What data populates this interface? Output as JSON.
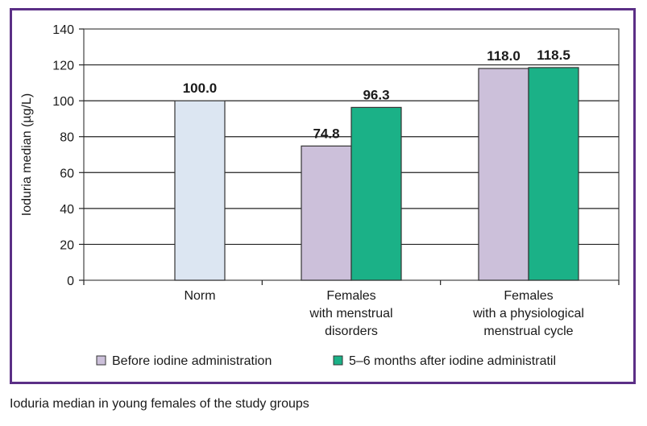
{
  "caption": "Ioduria median in young females of the study groups",
  "chart_data": {
    "type": "bar",
    "ylabel": "Ioduria median (µg/L)",
    "xlabel": "",
    "ylim": [
      0,
      140
    ],
    "yticks": [
      0,
      20,
      40,
      60,
      80,
      100,
      120,
      140
    ],
    "grid": true,
    "legend_position": "bottom",
    "categories": [
      [
        "Norm"
      ],
      [
        "Females",
        "with menstrual",
        "disorders"
      ],
      [
        "Females",
        "with a physiological",
        "menstrual cycle"
      ]
    ],
    "norm_bar": {
      "category": 0,
      "value": 100.0,
      "label": "100.0",
      "color": "#dce6f2"
    },
    "series": [
      {
        "name": "Before iodine administration",
        "color": "#ccc0da",
        "values": [
          null,
          74.8,
          118.0
        ],
        "labels": [
          "",
          "74.8",
          "118.0"
        ]
      },
      {
        "name": "5–6 months after iodine administratil",
        "color": "#1bb187",
        "values": [
          null,
          96.3,
          118.5
        ],
        "labels": [
          "",
          "96.3",
          "118.5"
        ]
      }
    ]
  }
}
